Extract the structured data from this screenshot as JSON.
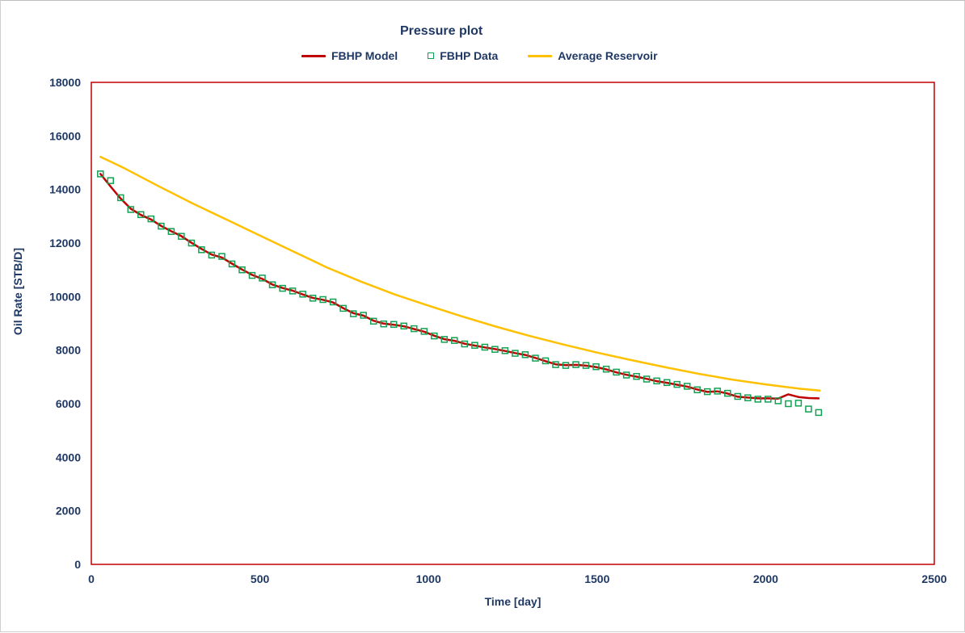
{
  "window": {
    "background": "#ffffff",
    "border_color": "#cfcfcf"
  },
  "chart": {
    "title": "Pressure plot",
    "text_color": "#1f3864",
    "frame_color": "#c00000",
    "legend": [
      {
        "label": "FBHP Model",
        "marker": "line",
        "color": "#c00000"
      },
      {
        "label": "FBHP Data",
        "marker": "open-square",
        "color": "#12a152"
      },
      {
        "label": "Average Reservoir",
        "marker": "line",
        "color": "#ffc000"
      }
    ]
  },
  "chart_data": {
    "type": "line",
    "title": "Pressure plot",
    "xlabel": "Time [day]",
    "ylabel": "Oil Rate [STB/D]",
    "xlim": [
      0,
      2500
    ],
    "ylim": [
      0,
      18000
    ],
    "x_ticks": [
      0,
      500,
      1000,
      1500,
      2000,
      2500
    ],
    "y_ticks": [
      0,
      2000,
      4000,
      6000,
      8000,
      10000,
      12000,
      14000,
      16000,
      18000
    ],
    "grid": false,
    "legend_position": "top-center",
    "series": [
      {
        "name": "FBHP Model",
        "type": "line",
        "color": "#c00000",
        "x": [
          27,
          57,
          87,
          117,
          147,
          177,
          207,
          237,
          267,
          297,
          327,
          357,
          387,
          417,
          447,
          477,
          507,
          537,
          567,
          597,
          627,
          657,
          687,
          717,
          747,
          777,
          807,
          837,
          867,
          897,
          927,
          957,
          987,
          1017,
          1047,
          1077,
          1107,
          1137,
          1167,
          1197,
          1227,
          1257,
          1287,
          1317,
          1347,
          1377,
          1407,
          1437,
          1467,
          1497,
          1527,
          1557,
          1587,
          1617,
          1647,
          1677,
          1707,
          1737,
          1767,
          1797,
          1827,
          1857,
          1887,
          1917,
          1947,
          1977,
          2007,
          2037,
          2067,
          2097,
          2127,
          2157
        ],
        "y": [
          14580,
          14110,
          13660,
          13280,
          13050,
          12880,
          12640,
          12440,
          12260,
          12010,
          11780,
          11570,
          11460,
          11230,
          11010,
          10810,
          10660,
          10450,
          10320,
          10220,
          10080,
          9950,
          9880,
          9780,
          9570,
          9380,
          9290,
          9100,
          8990,
          8950,
          8890,
          8790,
          8690,
          8540,
          8410,
          8350,
          8240,
          8170,
          8100,
          8040,
          7970,
          7890,
          7820,
          7710,
          7590,
          7470,
          7440,
          7450,
          7420,
          7370,
          7280,
          7170,
          7080,
          7010,
          6930,
          6840,
          6780,
          6710,
          6640,
          6530,
          6440,
          6460,
          6380,
          6260,
          6230,
          6200,
          6200,
          6190,
          6350,
          6250,
          6210,
          6200
        ]
      },
      {
        "name": "FBHP Data",
        "type": "scatter",
        "marker": "open-square",
        "color": "#12a152",
        "x": [
          27,
          57,
          87,
          117,
          147,
          177,
          207,
          237,
          267,
          297,
          327,
          357,
          387,
          417,
          447,
          477,
          507,
          537,
          567,
          597,
          627,
          657,
          687,
          717,
          747,
          777,
          807,
          837,
          867,
          897,
          927,
          957,
          987,
          1017,
          1047,
          1077,
          1107,
          1137,
          1167,
          1197,
          1227,
          1257,
          1287,
          1317,
          1347,
          1377,
          1407,
          1437,
          1467,
          1497,
          1527,
          1557,
          1587,
          1617,
          1647,
          1677,
          1707,
          1737,
          1767,
          1797,
          1827,
          1857,
          1887,
          1917,
          1947,
          1977,
          2007,
          2037,
          2067,
          2097,
          2127,
          2157
        ],
        "y": [
          14580,
          14330,
          13690,
          13250,
          13060,
          12900,
          12630,
          12430,
          12250,
          12000,
          11750,
          11550,
          11500,
          11220,
          11000,
          10790,
          10690,
          10440,
          10310,
          10210,
          10090,
          9940,
          9890,
          9800,
          9560,
          9360,
          9300,
          9080,
          8980,
          8960,
          8900,
          8800,
          8700,
          8530,
          8400,
          8360,
          8230,
          8180,
          8110,
          8030,
          7980,
          7880,
          7830,
          7700,
          7600,
          7460,
          7430,
          7460,
          7430,
          7380,
          7290,
          7180,
          7070,
          7020,
          6920,
          6850,
          6790,
          6720,
          6650,
          6520,
          6450,
          6470,
          6390,
          6270,
          6220,
          6170,
          6170,
          6110,
          6000,
          6020,
          5800,
          5670
        ]
      },
      {
        "name": "Average Reservoir",
        "type": "line",
        "color": "#ffc000",
        "x": [
          27,
          100,
          200,
          300,
          400,
          500,
          600,
          700,
          800,
          900,
          1000,
          1100,
          1200,
          1300,
          1400,
          1500,
          1600,
          1700,
          1800,
          1900,
          2000,
          2100,
          2160
        ],
        "y": [
          15220,
          14780,
          14120,
          13480,
          12880,
          12280,
          11680,
          11080,
          10560,
          10080,
          9660,
          9260,
          8880,
          8530,
          8210,
          7910,
          7630,
          7370,
          7120,
          6900,
          6720,
          6560,
          6490
        ]
      }
    ]
  }
}
